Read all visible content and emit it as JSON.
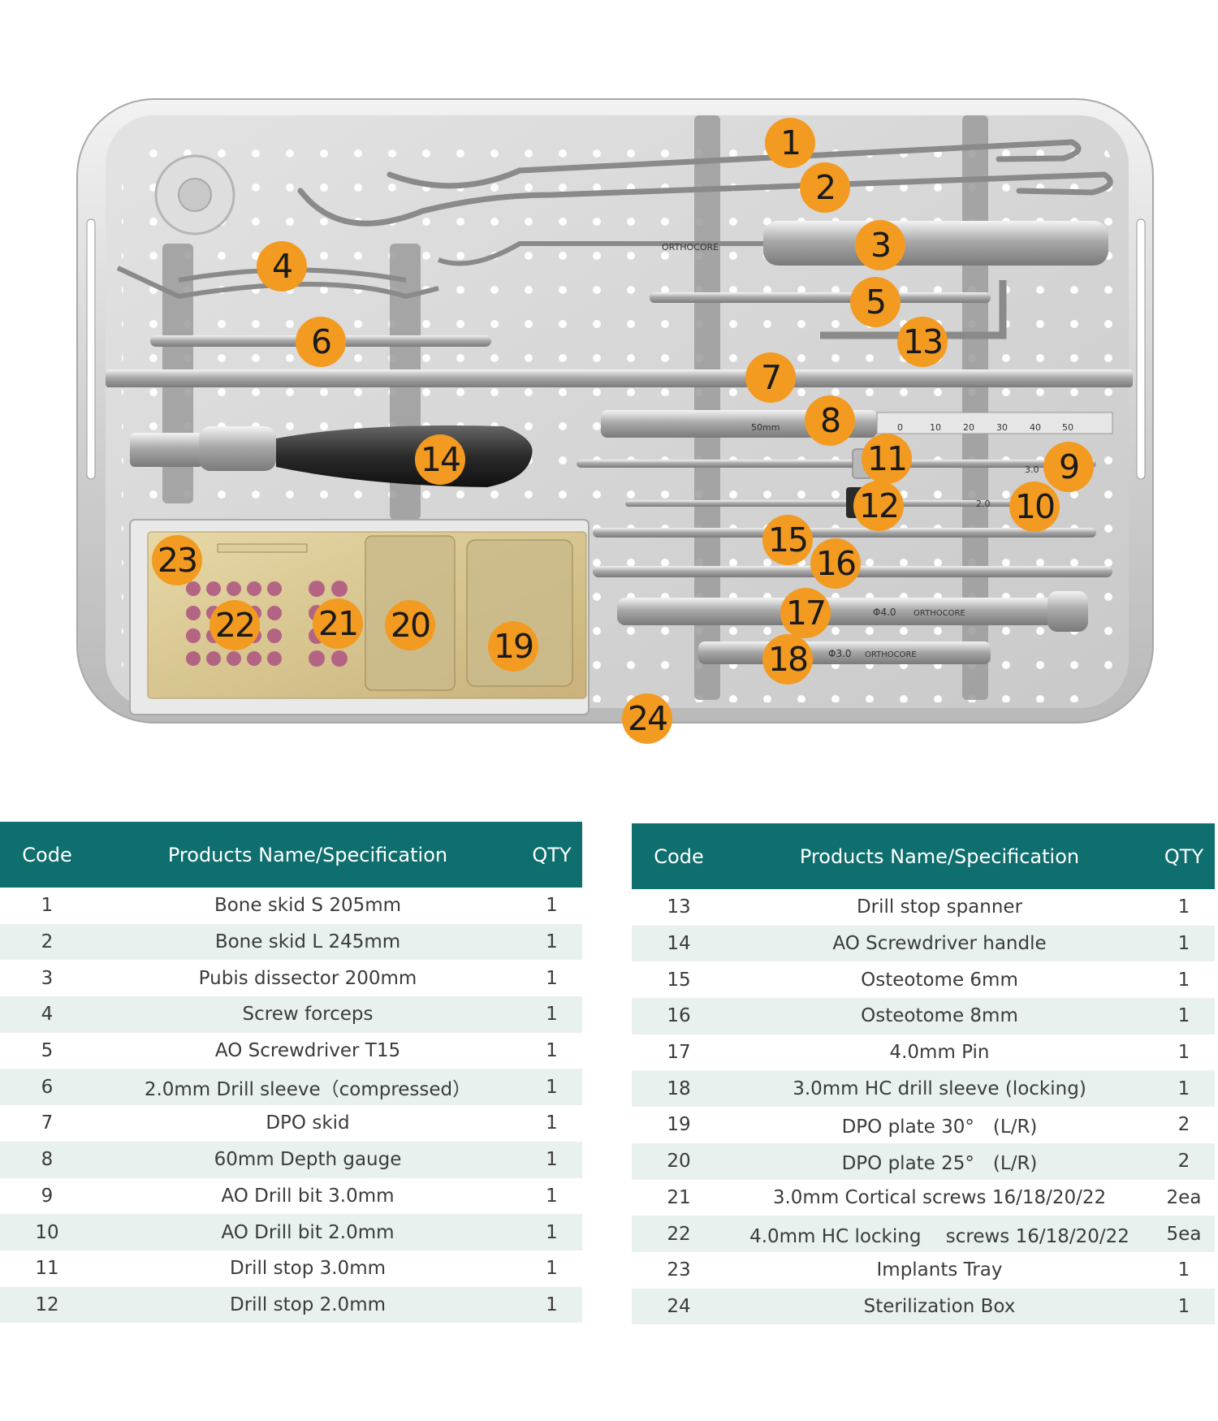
{
  "photo": {
    "brand_texts": [
      "ORTHOCORE",
      "ORTHOCORE",
      "ORTHOCORE"
    ],
    "engravings": [
      "50mm",
      "0",
      "10",
      "20",
      "30",
      "40",
      "50",
      "Φ4.0",
      "Φ3.0",
      "3.0",
      "2.0"
    ],
    "callouts": [
      "1",
      "2",
      "3",
      "4",
      "5",
      "6",
      "7",
      "8",
      "9",
      "10",
      "11",
      "12",
      "13",
      "14",
      "15",
      "16",
      "17",
      "18",
      "19",
      "20",
      "21",
      "22",
      "23",
      "24"
    ],
    "colors": {
      "callout": "#f39a21",
      "header": "#0f6e6e",
      "stripe": "#e8f1ee"
    }
  },
  "tables": [
    {
      "headers": {
        "code": "Code",
        "name": "Products Name/Specification",
        "qty": "QTY"
      },
      "rows": [
        {
          "code": "1",
          "name": "Bone skid S 205mm",
          "qty": "1"
        },
        {
          "code": "2",
          "name": "Bone skid L 245mm",
          "qty": "1"
        },
        {
          "code": "3",
          "name": "Pubis dissector 200mm",
          "qty": "1"
        },
        {
          "code": "4",
          "name": "Screw forceps",
          "qty": "1"
        },
        {
          "code": "5",
          "name": "AO Screwdriver T15",
          "qty": "1"
        },
        {
          "code": "6",
          "name": "2.0mm Drill sleeve（compressed）",
          "qty": "1"
        },
        {
          "code": "7",
          "name": "DPO skid",
          "qty": "1"
        },
        {
          "code": "8",
          "name": "60mm Depth gauge",
          "qty": "1"
        },
        {
          "code": "9",
          "name": "AO Drill bit 3.0mm",
          "qty": "1"
        },
        {
          "code": "10",
          "name": "AO Drill bit 2.0mm",
          "qty": "1"
        },
        {
          "code": "11",
          "name": "Drill stop 3.0mm",
          "qty": "1"
        },
        {
          "code": "12",
          "name": "Drill stop 2.0mm",
          "qty": "1"
        }
      ]
    },
    {
      "headers": {
        "code": "Code",
        "name": "Products Name/Specification",
        "qty": "QTY"
      },
      "rows": [
        {
          "code": "13",
          "name": "Drill stop spanner",
          "qty": "1"
        },
        {
          "code": "14",
          "name": "AO Screwdriver handle",
          "qty": "1"
        },
        {
          "code": "15",
          "name": "Osteotome 6mm",
          "qty": "1"
        },
        {
          "code": "16",
          "name": "Osteotome 8mm",
          "qty": "1"
        },
        {
          "code": "17",
          "name": "4.0mm Pin",
          "qty": "1"
        },
        {
          "code": "18",
          "name": "3.0mm HC drill sleeve (locking)",
          "qty": "1"
        },
        {
          "code": "19",
          "name": "DPO plate 30°　(L/R)",
          "qty": "2"
        },
        {
          "code": "20",
          "name": "DPO plate 25°　(L/R)",
          "qty": "2"
        },
        {
          "code": "21",
          "name": "3.0mm Cortical screws 16/18/20/22",
          "qty": "2ea"
        },
        {
          "code": "22",
          "name": "4.0mm HC locking　 screws 16/18/20/22",
          "qty": "5ea"
        },
        {
          "code": "23",
          "name": "Implants Tray",
          "qty": "1"
        },
        {
          "code": "24",
          "name": "Sterilization Box",
          "qty": "1"
        }
      ]
    }
  ]
}
